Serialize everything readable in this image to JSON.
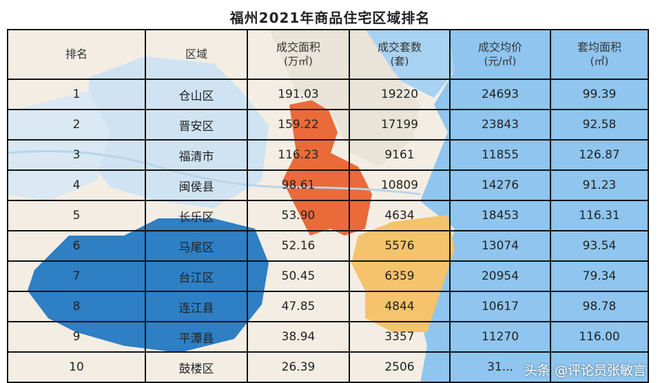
{
  "title": "福州2021年商品住宅区域排名",
  "table": {
    "headers": [
      {
        "line1": "排名",
        "line2": ""
      },
      {
        "line1": "区域",
        "line2": ""
      },
      {
        "line1": "成交面积",
        "line2": "(万㎡)"
      },
      {
        "line1": "成交套数",
        "line2": "(套)"
      },
      {
        "line1": "成交均价",
        "line2": "(元/㎡)"
      },
      {
        "line1": "套均面积",
        "line2": "(㎡)"
      }
    ],
    "rows": [
      [
        "1",
        "仓山区",
        "191.03",
        "19220",
        "24693",
        "99.39"
      ],
      [
        "2",
        "晋安区",
        "159.22",
        "17199",
        "23843",
        "92.58"
      ],
      [
        "3",
        "福清市",
        "116.23",
        "9161",
        "11855",
        "126.87"
      ],
      [
        "4",
        "闽侯县",
        "98.61",
        "10809",
        "14276",
        "91.23"
      ],
      [
        "5",
        "长乐区",
        "53.90",
        "4634",
        "18453",
        "116.31"
      ],
      [
        "6",
        "马尾区",
        "52.16",
        "5576",
        "13074",
        "93.54"
      ],
      [
        "7",
        "台江区",
        "50.45",
        "6359",
        "20954",
        "79.34"
      ],
      [
        "8",
        "连江县",
        "47.85",
        "4844",
        "10617",
        "98.78"
      ],
      [
        "9",
        "平潭县",
        "38.94",
        "3357",
        "11270",
        "116.00"
      ],
      [
        "10",
        "鼓楼区",
        "26.39",
        "2506",
        "31...",
        ""
      ]
    ]
  },
  "watermark": "头条 @评论员张敏言",
  "colors": {
    "map_blue_dark": "#2e7fc4",
    "map_blue_light": "#cfe3f2",
    "map_orange": "#ea6a3a",
    "map_yellow": "#f4c36b",
    "sea_blue": "#8fc5ee",
    "land_beige": "#f3ebe0"
  }
}
